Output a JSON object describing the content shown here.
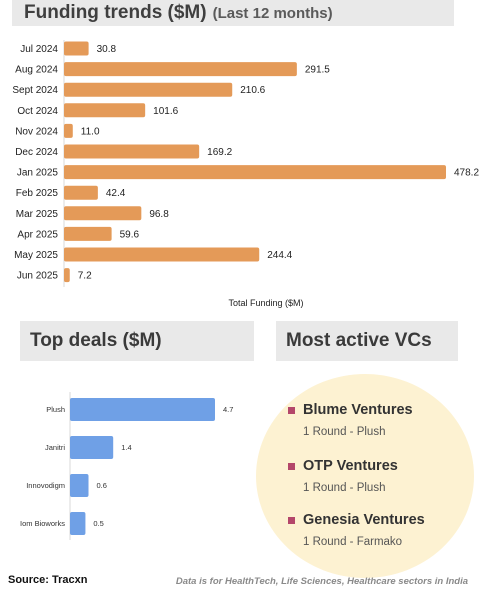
{
  "funding_header": {
    "title": "Funding trends ($M)",
    "subtitle": "(Last 12 months)"
  },
  "deals_header": {
    "title": "Top deals ($M)"
  },
  "vcs_header": {
    "title": "Most active VCs"
  },
  "chart_data": [
    {
      "type": "bar",
      "orientation": "horizontal",
      "title": "Funding trends ($M)",
      "subtitle": "(Last 12 months)",
      "xlabel": "Total Funding ($M)",
      "categories": [
        "Jul 2024",
        "Aug 2024",
        "Sept 2024",
        "Oct 2024",
        "Nov 2024",
        "Dec 2024",
        "Jan 2025",
        "Feb 2025",
        "Mar 2025",
        "Apr 2025",
        "May 2025",
        "Jun 2025"
      ],
      "values": [
        30.8,
        291.5,
        210.6,
        101.6,
        11.0,
        169.2,
        478.2,
        42.4,
        96.8,
        59.6,
        244.4,
        7.2
      ],
      "value_labels": [
        "30.8",
        "291.5",
        "210.6",
        "101.6",
        "11.0",
        "169.2",
        "478.2",
        "42.4",
        "96.8",
        "59.6",
        "244.4",
        "7.2"
      ],
      "xlim": [
        0,
        480
      ],
      "bar_color": "#e49a58",
      "grid": false
    },
    {
      "type": "bar",
      "orientation": "horizontal",
      "title": "Top deals ($M)",
      "categories": [
        "Plush",
        "Janitri",
        "Innovodigm",
        "Iom Bioworks"
      ],
      "values": [
        4.7,
        1.4,
        0.6,
        0.5
      ],
      "value_labels": [
        "4.7",
        "1.4",
        "0.6",
        "0.5"
      ],
      "xlim": [
        0,
        4.7
      ],
      "bar_color": "#6fa0e6",
      "grid": false
    }
  ],
  "vcs": [
    {
      "name": "Blume Ventures",
      "detail": "1 Round - Plush"
    },
    {
      "name": "OTP Ventures",
      "detail": "1 Round - Plush"
    },
    {
      "name": "Genesia Ventures",
      "detail": "1 Round - Farmako"
    }
  ],
  "colors": {
    "vc_bullet": "#b4476a",
    "vc_circle": "#fdf2d2",
    "header_bg": "#e9e9e9"
  },
  "footer": {
    "source": "Source: Tracxn",
    "note": "Data is for HealthTech, Life Sciences, Healthcare sectors in India"
  }
}
